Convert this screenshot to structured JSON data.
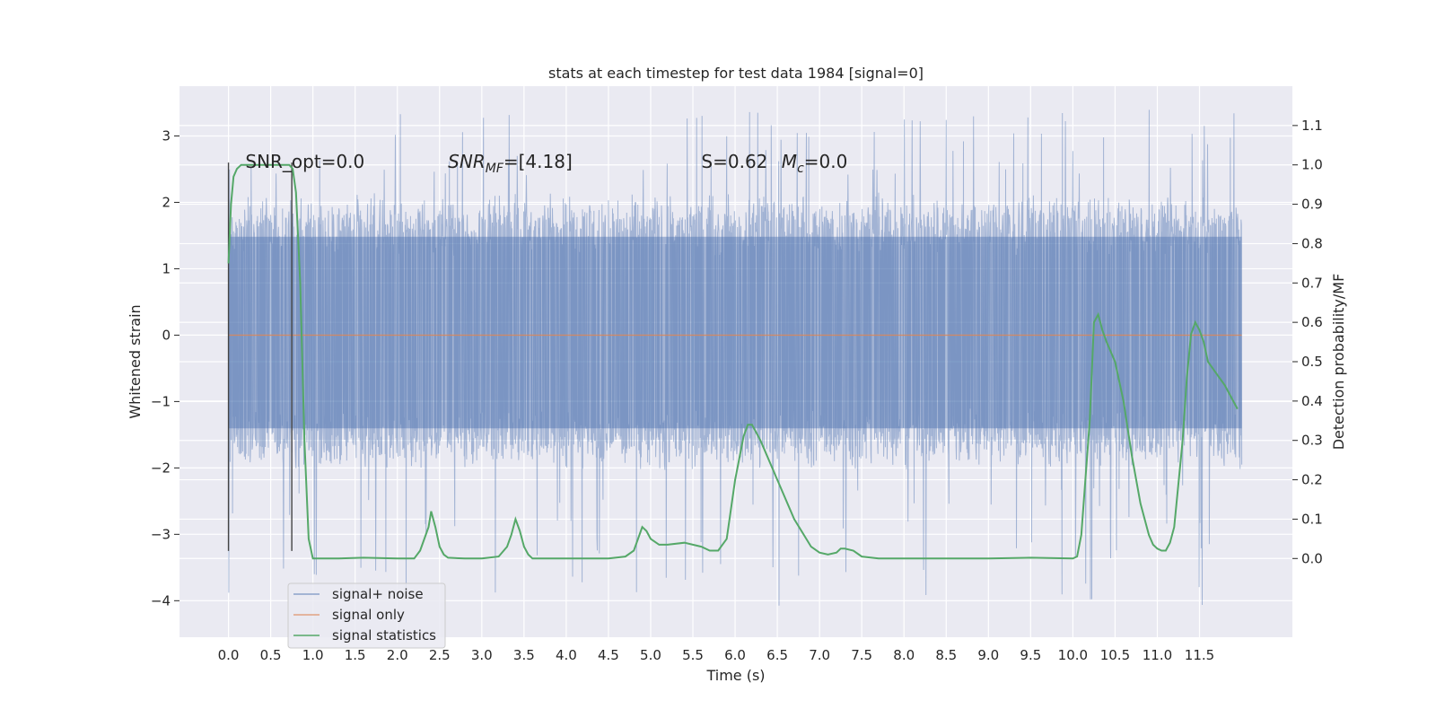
{
  "chart_data": {
    "type": "line",
    "title": "stats at each timestep for test data 1984 [signal=0]",
    "xlabel": "Time (s)",
    "ylabel": "Whitened strain",
    "y2label": "Detection probability/MF",
    "xlim": [
      -0.58,
      12.6
    ],
    "ylim": [
      -4.55,
      3.75
    ],
    "y2lim": [
      -0.2,
      1.2
    ],
    "xticks": [
      0.0,
      0.5,
      1.0,
      1.5,
      2.0,
      2.5,
      3.0,
      3.5,
      4.0,
      4.5,
      5.0,
      5.5,
      6.0,
      6.5,
      7.0,
      7.5,
      8.0,
      8.5,
      9.0,
      9.5,
      10.0,
      10.5,
      11.0,
      11.5
    ],
    "xtick_labels": [
      "0.0",
      "0.5",
      "1.0",
      "1.5",
      "2.0",
      "2.5",
      "3.0",
      "3.5",
      "4.0",
      "4.5",
      "5.0",
      "5.5",
      "6.0",
      "6.5",
      "7.0",
      "7.5",
      "8.0",
      "8.5",
      "9.0",
      "9.5",
      "10.0",
      "10.5",
      "11.0",
      "11.5"
    ],
    "yticks": [
      -4,
      -3,
      -2,
      -1,
      0,
      1,
      2,
      3
    ],
    "ytick_labels": [
      "−4",
      "−3",
      "−2",
      "−1",
      "0",
      "1",
      "2",
      "3"
    ],
    "y2ticks": [
      0.0,
      0.1,
      0.2,
      0.3,
      0.4,
      0.5,
      0.6,
      0.7,
      0.8,
      0.9,
      1.0,
      1.1
    ],
    "y2tick_labels": [
      "0.0",
      "0.1",
      "0.2",
      "0.3",
      "0.4",
      "0.5",
      "0.6",
      "0.7",
      "0.8",
      "0.9",
      "1.0",
      "1.1"
    ],
    "grid": true,
    "legend_position": "lower-left",
    "colors": {
      "background": "#eaeaf2",
      "grid": "#ffffff",
      "noise": "#4c72b0",
      "signal": "#dd8452",
      "stats": "#55a868",
      "marker": "#444444"
    },
    "series": [
      {
        "name": "signal+ noise",
        "type": "noise-envelope",
        "t_start": 0.0,
        "t_end": 12.0,
        "typical_range": [
          -1.8,
          1.9
        ],
        "min": -4.1,
        "max": 3.4
      },
      {
        "name": "signal only",
        "type": "constant",
        "t_start": 0.0,
        "t_end": 12.0,
        "value": 0.0
      },
      {
        "name": "signal statistics",
        "axis": "right",
        "x": [
          0.0,
          0.03,
          0.06,
          0.1,
          0.15,
          0.2,
          0.3,
          0.5,
          0.65,
          0.72,
          0.76,
          0.8,
          0.85,
          0.9,
          0.95,
          1.0,
          1.1,
          1.3,
          1.6,
          2.0,
          2.2,
          2.27,
          2.32,
          2.37,
          2.4,
          2.45,
          2.5,
          2.55,
          2.6,
          2.8,
          3.0,
          3.2,
          3.3,
          3.35,
          3.4,
          3.45,
          3.5,
          3.55,
          3.6,
          3.8,
          4.0,
          4.5,
          4.7,
          4.8,
          4.85,
          4.9,
          4.95,
          5.0,
          5.1,
          5.2,
          5.4,
          5.6,
          5.7,
          5.8,
          5.9,
          6.0,
          6.1,
          6.15,
          6.2,
          6.3,
          6.5,
          6.7,
          6.9,
          7.0,
          7.1,
          7.2,
          7.25,
          7.3,
          7.4,
          7.5,
          7.7,
          8.0,
          9.0,
          9.5,
          10.0,
          10.05,
          10.1,
          10.2,
          10.25,
          10.3,
          10.35,
          10.4,
          10.5,
          10.6,
          10.7,
          10.8,
          10.9,
          10.95,
          11.0,
          11.05,
          11.1,
          11.15,
          11.2,
          11.3,
          11.35,
          11.4,
          11.45,
          11.5,
          11.55,
          11.6,
          11.7,
          11.8,
          11.85,
          11.9,
          11.95
        ],
        "y": [
          0.75,
          0.9,
          0.97,
          0.99,
          1.0,
          1.0,
          1.0,
          1.0,
          1.0,
          1.0,
          0.99,
          0.93,
          0.7,
          0.3,
          0.05,
          0.0,
          0.0,
          0.0,
          0.002,
          0.0,
          0.0,
          0.02,
          0.05,
          0.08,
          0.12,
          0.08,
          0.03,
          0.01,
          0.002,
          0.0,
          0.0,
          0.005,
          0.03,
          0.06,
          0.1,
          0.07,
          0.03,
          0.01,
          0.0,
          0.0,
          0.0,
          0.0,
          0.005,
          0.02,
          0.05,
          0.08,
          0.07,
          0.05,
          0.035,
          0.035,
          0.04,
          0.03,
          0.02,
          0.02,
          0.05,
          0.2,
          0.31,
          0.34,
          0.34,
          0.3,
          0.2,
          0.1,
          0.03,
          0.015,
          0.01,
          0.015,
          0.025,
          0.025,
          0.02,
          0.005,
          0.0,
          0.0,
          0.0,
          0.002,
          0.0,
          0.005,
          0.06,
          0.35,
          0.6,
          0.62,
          0.58,
          0.55,
          0.5,
          0.4,
          0.26,
          0.14,
          0.06,
          0.035,
          0.025,
          0.02,
          0.02,
          0.04,
          0.08,
          0.3,
          0.46,
          0.57,
          0.6,
          0.58,
          0.55,
          0.5,
          0.47,
          0.44,
          0.42,
          0.4,
          0.38
        ]
      }
    ],
    "markers": [
      {
        "name": "segment start",
        "x": 0.0,
        "y_range": [
          -3.25,
          2.6
        ]
      },
      {
        "name": "segment end",
        "x": 0.75,
        "y_range": [
          -3.25,
          2.6
        ]
      }
    ],
    "annotations": [
      {
        "name": "snr-opt",
        "text": "SNR_opt=0.0",
        "x": 0.2
      },
      {
        "name": "snr-mf",
        "text": "SNR_MF=[4.18]",
        "x": 2.6
      },
      {
        "name": "s-value",
        "text": "S=0.62",
        "x": 5.6
      },
      {
        "name": "mc-value",
        "text": "M_c=0.0",
        "x": 6.55
      }
    ],
    "annotation_y": 2.6
  }
}
